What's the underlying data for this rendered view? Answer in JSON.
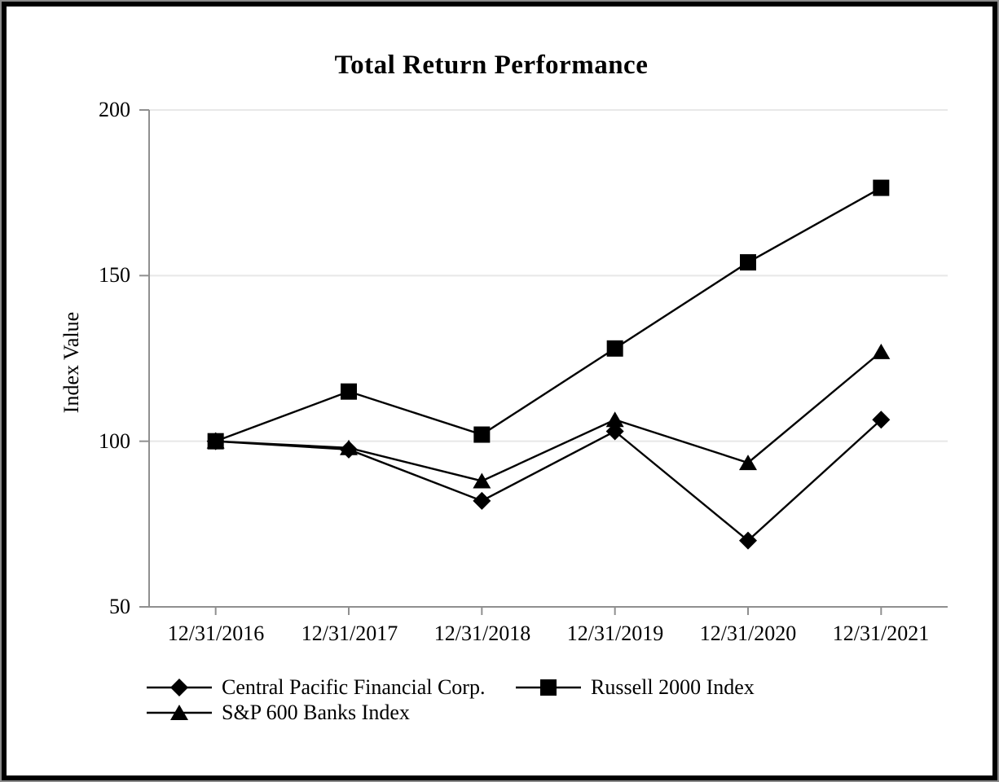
{
  "chart_data": {
    "type": "line",
    "title": "Total Return Performance",
    "ylabel": "Index Value",
    "xlabel": "",
    "x_labels": [
      "12/31/2016",
      "12/31/2017",
      "12/31/2018",
      "12/31/2019",
      "12/31/2020",
      "12/31/2021"
    ],
    "y_ticks": [
      200,
      150,
      100,
      50
    ],
    "ylim": [
      50,
      200
    ],
    "grid": "light horizontal gridlines at 100, 150, 200",
    "legend_position": "below x-axis, left-aligned, two rows",
    "series": [
      {
        "name": "Central Pacific Financial Corp.",
        "marker": "diamond",
        "color": "#000000",
        "values": [
          100,
          97.5,
          82,
          103,
          70,
          106.5
        ]
      },
      {
        "name": "Russell 2000 Index",
        "marker": "square",
        "color": "#000000",
        "values": [
          100,
          115,
          102,
          128,
          154,
          176.5
        ]
      },
      {
        "name": "S&P 600 Banks Index",
        "marker": "triangle",
        "color": "#000000",
        "values": [
          100,
          98,
          88,
          106.5,
          93.5,
          127
        ]
      }
    ],
    "axis_color": "#8f8f8f",
    "gridline_color": "#e8e8e8",
    "line_color": "#000000"
  }
}
